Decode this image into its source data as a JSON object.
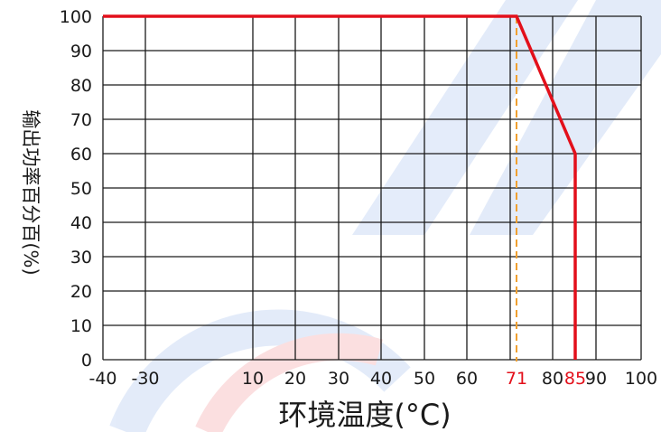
{
  "chart_data": {
    "type": "line",
    "title": "",
    "xlabel": "环境温度(°C)",
    "ylabel": "输出功率百分百(%)",
    "x_ticks": [
      -40,
      -30,
      10,
      20,
      30,
      40,
      50,
      60,
      71,
      80,
      85,
      90,
      100
    ],
    "x_ticks_highlighted": [
      71,
      85
    ],
    "y_ticks": [
      0,
      10,
      20,
      30,
      40,
      50,
      60,
      70,
      80,
      90,
      100
    ],
    "ylim": [
      0,
      100
    ],
    "grid": true,
    "series": [
      {
        "x": [
          -40,
          71,
          85,
          85
        ],
        "y": [
          100,
          100,
          60,
          0
        ]
      }
    ],
    "reference_lines": [
      {
        "x": 71,
        "style": "dashed"
      }
    ],
    "colors": {
      "series": "#e3101b",
      "reference": "#f0a030",
      "grid": "#1a1a1a",
      "highlight_tick": "#e3101b"
    }
  }
}
